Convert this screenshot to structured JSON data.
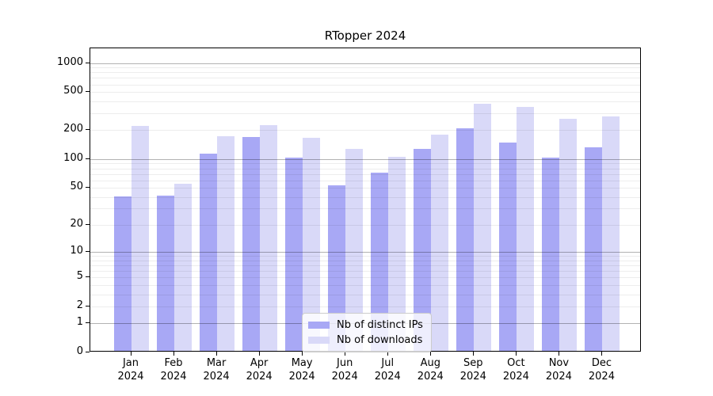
{
  "chart_data": {
    "type": "bar",
    "title": "RTopper 2024",
    "year_label": "2024",
    "categories": [
      "Jan",
      "Feb",
      "Mar",
      "Apr",
      "May",
      "Jun",
      "Jul",
      "Aug",
      "Sep",
      "Oct",
      "Nov",
      "Dec"
    ],
    "series": [
      {
        "name": "Nb of distinct IPs",
        "color": "#a8a8f5",
        "values": [
          39,
          40,
          110,
          163,
          100,
          51,
          70,
          122,
          200,
          144,
          100,
          128
        ]
      },
      {
        "name": "Nb of downloads",
        "color": "#d9d9f8",
        "values": [
          213,
          53,
          167,
          218,
          162,
          122,
          102,
          172,
          360,
          335,
          253,
          268
        ]
      }
    ],
    "xlabel": "",
    "ylabel": "",
    "yscale": "log1p",
    "ylim": [
      0,
      1420
    ],
    "ytick_labels": [
      1000,
      500,
      200,
      100,
      50,
      20,
      10,
      5,
      2,
      1,
      0
    ],
    "major_grid_values": [
      1,
      10,
      100,
      1000
    ],
    "grid": true,
    "legend_position": "lower center"
  },
  "style": {
    "major_grid_color": "rgba(0,0,0,0.30)",
    "minor_grid_color": "rgba(0,0,0,0.07)",
    "spine_color": "#000000"
  }
}
